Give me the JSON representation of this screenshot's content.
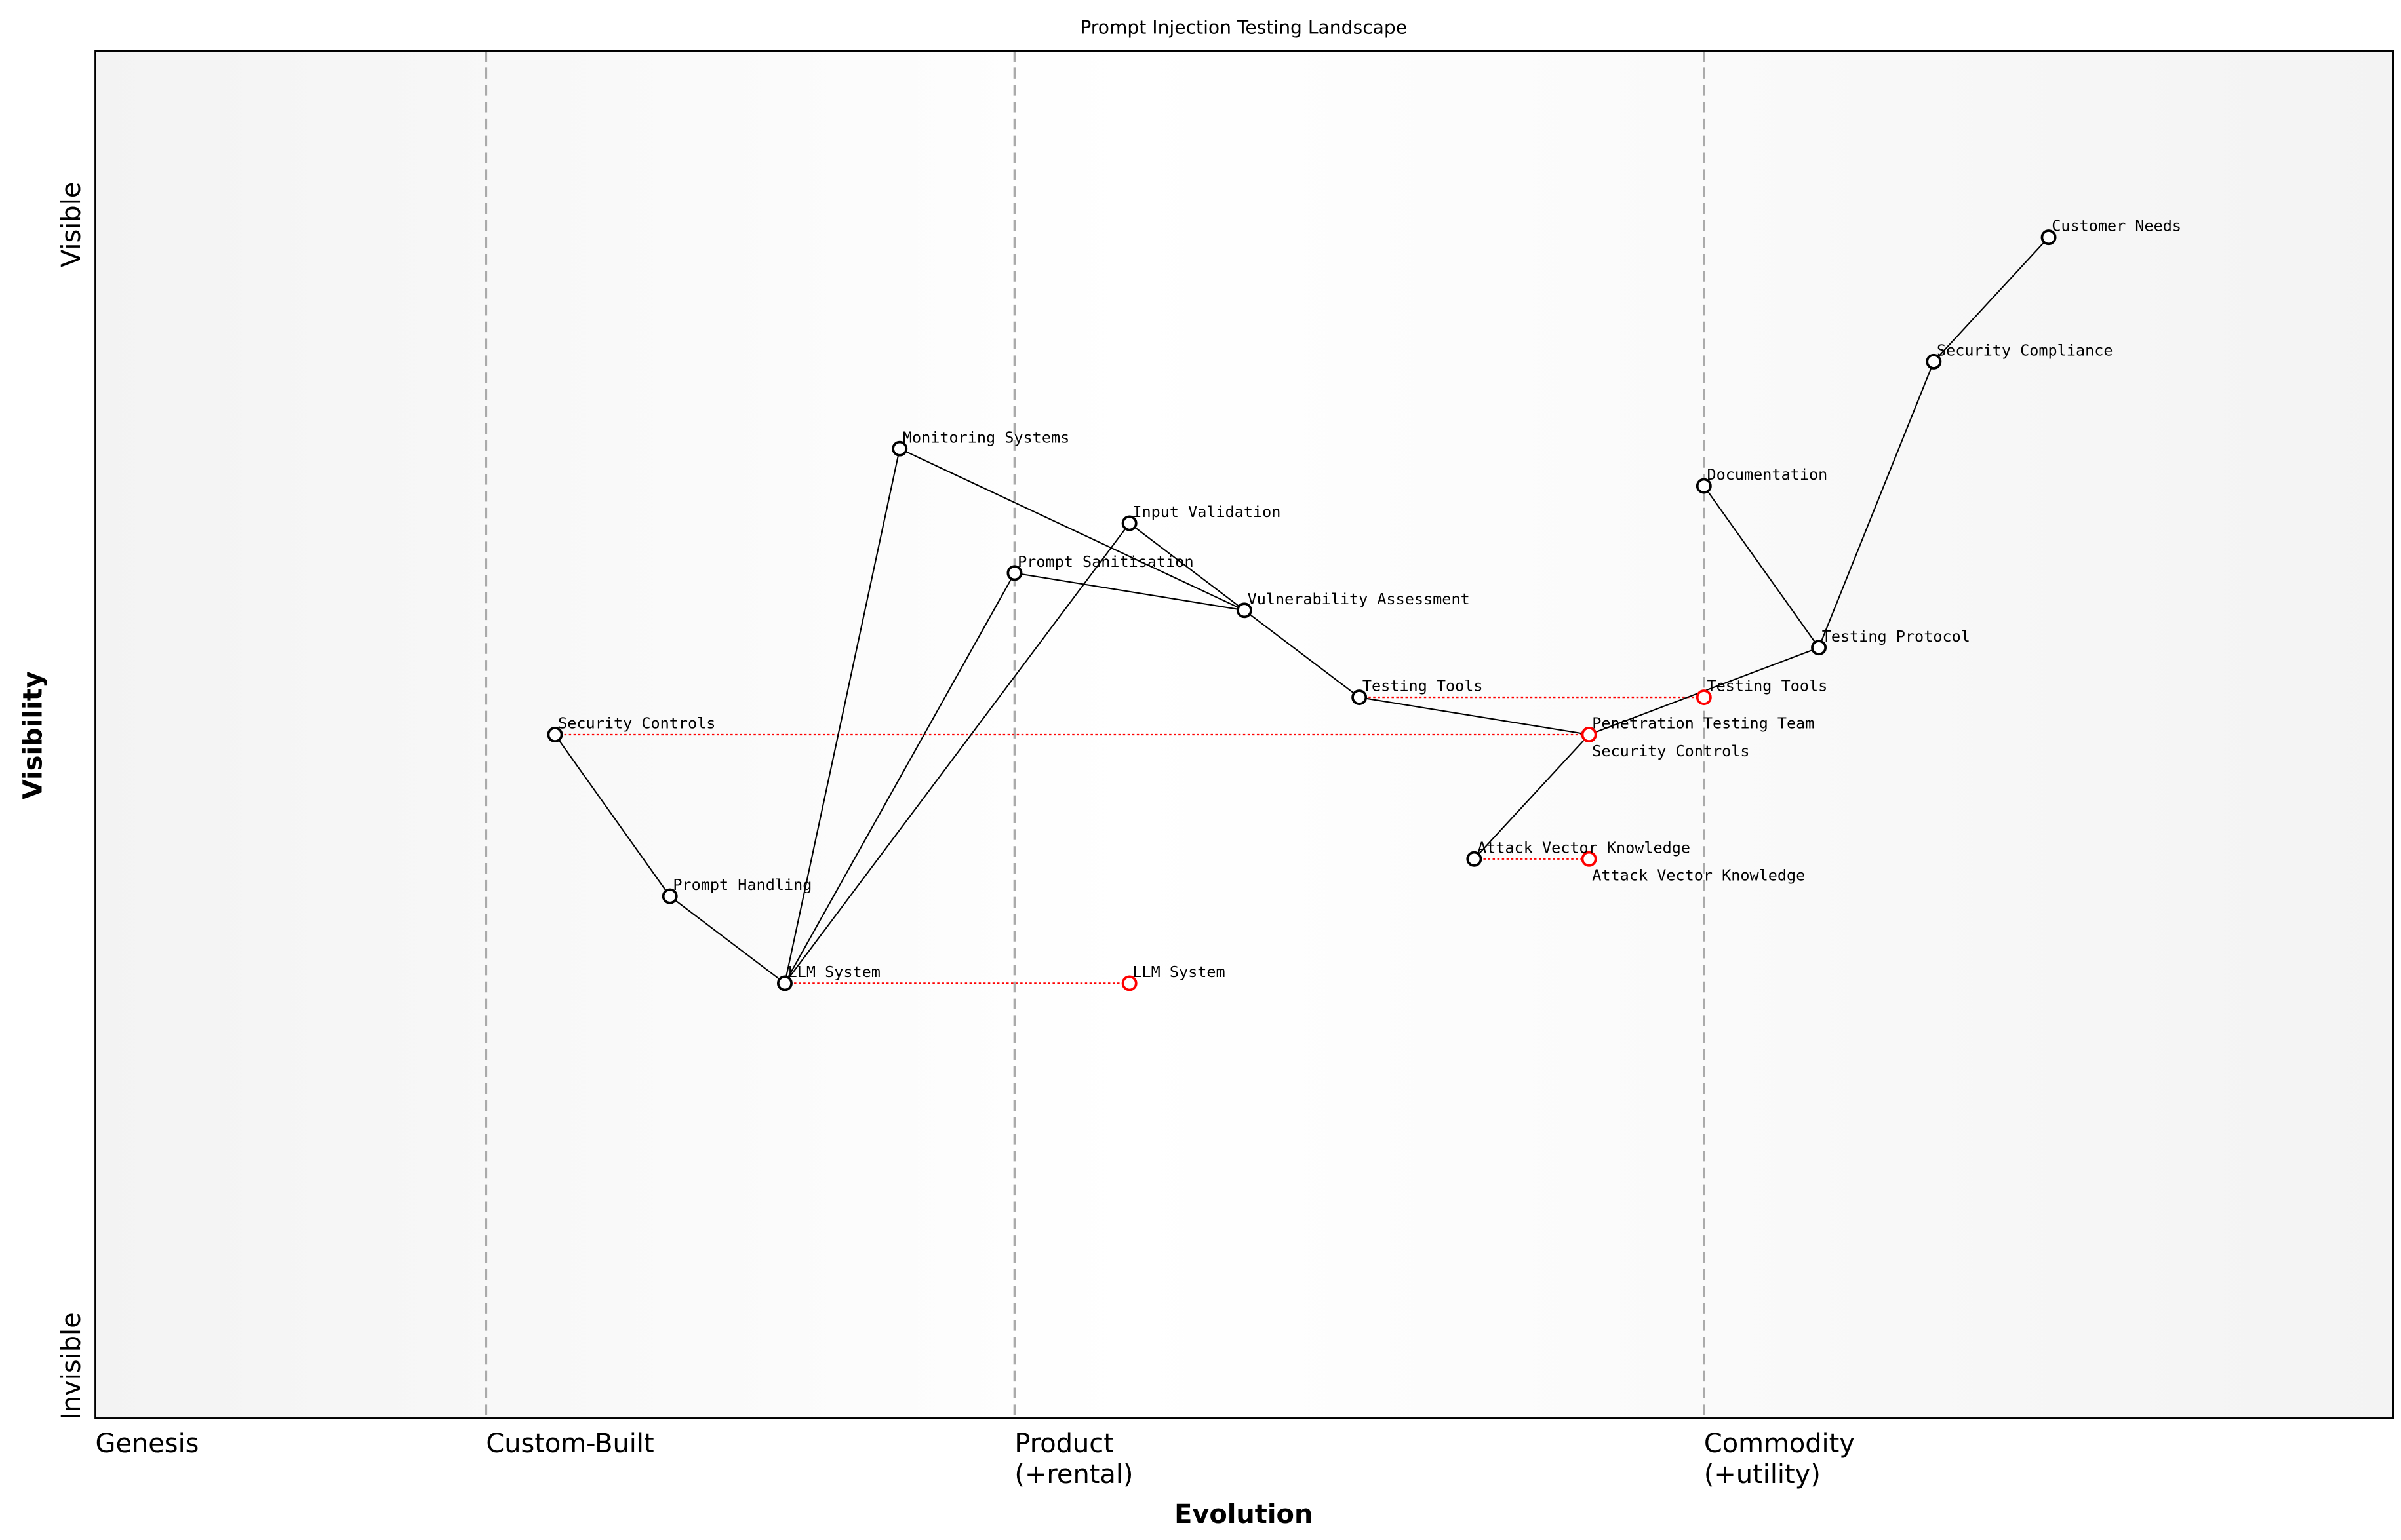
{
  "chart_data": {
    "type": "scatter",
    "subtype": "wardley-map",
    "title": "Prompt Injection Testing Landscape",
    "xlabel": "Evolution",
    "ylabel": "Visibility",
    "xlim": [
      0,
      1
    ],
    "ylim": [
      0,
      1.1
    ],
    "grid": false,
    "stages": [
      {
        "x": 0,
        "label": "Genesis"
      },
      {
        "x": 0.17,
        "label": "Custom-Built"
      },
      {
        "x": 0.4,
        "label": "Product\n(+rental)"
      },
      {
        "x": 0.7,
        "label": "Commodity\n(+utility)"
      }
    ],
    "y_tick_labels": {
      "top": "Visible",
      "bottom": "Invisible"
    },
    "components": [
      {
        "name": "Customer Needs",
        "x": 0.85,
        "y": 0.95
      },
      {
        "name": "Security Compliance",
        "x": 0.8,
        "y": 0.85
      },
      {
        "name": "Documentation",
        "x": 0.7,
        "y": 0.75
      },
      {
        "name": "Testing Protocol",
        "x": 0.75,
        "y": 0.62
      },
      {
        "name": "Testing Tools",
        "x": 0.55,
        "y": 0.58
      },
      {
        "name": "Penetration Testing Team",
        "x": 0.65,
        "y": 0.55
      },
      {
        "name": "Security Controls",
        "x": 0.2,
        "y": 0.55
      },
      {
        "name": "Attack Vector Knowledge",
        "x": 0.6,
        "y": 0.45
      },
      {
        "name": "Monitoring Systems",
        "x": 0.35,
        "y": 0.78
      },
      {
        "name": "Input Validation",
        "x": 0.45,
        "y": 0.72
      },
      {
        "name": "Prompt Sanitisation",
        "x": 0.4,
        "y": 0.68
      },
      {
        "name": "Vulnerability Assessment",
        "x": 0.5,
        "y": 0.65
      },
      {
        "name": "Prompt Handling",
        "x": 0.25,
        "y": 0.42
      },
      {
        "name": "LLM System",
        "x": 0.3,
        "y": 0.35
      }
    ],
    "links": [
      [
        "Customer Needs",
        "Security Compliance"
      ],
      [
        "Security Compliance",
        "Testing Protocol"
      ],
      [
        "Documentation",
        "Testing Protocol"
      ],
      [
        "Testing Protocol",
        "Penetration Testing Team"
      ],
      [
        "Penetration Testing Team",
        "Testing Tools"
      ],
      [
        "Penetration Testing Team",
        "Attack Vector Knowledge"
      ],
      [
        "Testing Tools",
        "Vulnerability Assessment"
      ],
      [
        "Vulnerability Assessment",
        "Input Validation"
      ],
      [
        "Vulnerability Assessment",
        "Prompt Sanitisation"
      ],
      [
        "Vulnerability Assessment",
        "Monitoring Systems"
      ],
      [
        "Input Validation",
        "LLM System"
      ],
      [
        "Prompt Sanitisation",
        "LLM System"
      ],
      [
        "Monitoring Systems",
        "LLM System"
      ],
      [
        "LLM System",
        "Prompt Handling"
      ],
      [
        "Prompt Handling",
        "Security Controls"
      ]
    ],
    "evolutions": [
      {
        "name": "LLM System",
        "from": 0.3,
        "to": 0.45
      },
      {
        "name": "Security Controls",
        "from": 0.2,
        "to": 0.65
      },
      {
        "name": "Testing Tools",
        "from": 0.55,
        "to": 0.7
      },
      {
        "name": "Attack Vector Knowledge",
        "from": 0.6,
        "to": 0.65
      }
    ],
    "colors": {
      "component": "#000000",
      "evolved": "#ff0000",
      "stage_line": "#aaaaaa"
    }
  }
}
